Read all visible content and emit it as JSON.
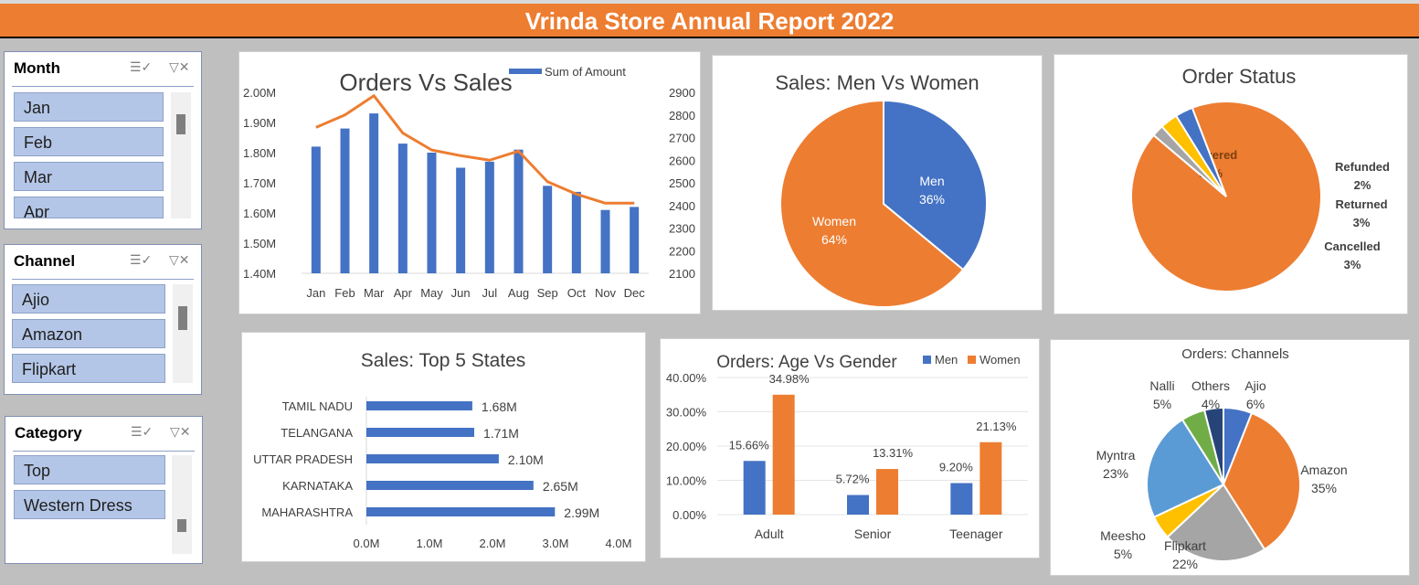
{
  "title": "Vrinda Store Annual Report 2022",
  "slicers": {
    "month": {
      "header": "Month",
      "items": [
        "Jan",
        "Feb",
        "Mar",
        "Apr"
      ]
    },
    "channel": {
      "header": "Channel",
      "items": [
        "Ajio",
        "Amazon",
        "Flipkart"
      ]
    },
    "category": {
      "header": "Category",
      "items": [
        "Top",
        "Western Dress"
      ]
    }
  },
  "icons": {
    "multiselect": "multi-select-icon",
    "clear_filter": "clear-filter-icon"
  },
  "colors": {
    "banner": "#ed7d31",
    "blue": "#4472c4",
    "orange": "#ed7d31",
    "gray": "#a5a5a5",
    "yellow": "#ffc000",
    "lightblue": "#5b9bd5",
    "green": "#70ad47",
    "navy": "#264478",
    "slicer_item": "#b4c6e7"
  },
  "chart_data": [
    {
      "id": "orders_sales",
      "type": "bar",
      "title": "Orders Vs Sales",
      "categories": [
        "Jan",
        "Feb",
        "Mar",
        "Apr",
        "May",
        "Jun",
        "Jul",
        "Aug",
        "Sep",
        "Oct",
        "Nov",
        "Dec"
      ],
      "series": [
        {
          "name": "Sum of Amount",
          "type": "bar",
          "values": [
            1.82,
            1.88,
            1.93,
            1.83,
            1.8,
            1.75,
            1.77,
            1.81,
            1.69,
            1.67,
            1.61,
            1.62
          ]
        },
        {
          "type": "line",
          "values": [
            2745,
            2800,
            2885,
            2720,
            2645,
            2620,
            2600,
            2640,
            2505,
            2450,
            2410,
            2410
          ]
        }
      ],
      "y_left": {
        "ticks": [
          "2.00M",
          "1.90M",
          "1.80M",
          "1.70M",
          "1.60M",
          "1.50M",
          "1.40M"
        ],
        "range": [
          1.4,
          2.0
        ]
      },
      "y_right": {
        "ticks": [
          "2900",
          "2800",
          "2700",
          "2600",
          "2500",
          "2400",
          "2300",
          "2200",
          "2100"
        ],
        "range": [
          2100,
          2900
        ]
      }
    },
    {
      "id": "men_women",
      "type": "pie",
      "title": "Sales: Men Vs Women",
      "slices": [
        {
          "label": "Men",
          "value": 36,
          "pct": "36%"
        },
        {
          "label": "Women",
          "value": 64,
          "pct": "64%"
        }
      ]
    },
    {
      "id": "order_status",
      "type": "pie",
      "title": "Order Status",
      "slices": [
        {
          "label": "Delivered",
          "value": 92,
          "pct": "92%"
        },
        {
          "label": "Refunded",
          "value": 2,
          "pct": "2%"
        },
        {
          "label": "Returned",
          "value": 3,
          "pct": "3%"
        },
        {
          "label": "Cancelled",
          "value": 3,
          "pct": "3%"
        }
      ]
    },
    {
      "id": "top_states",
      "type": "bar",
      "orientation": "horizontal",
      "title": "Sales: Top 5 States",
      "categories": [
        "TAMIL NADU",
        "TELANGANA",
        "UTTAR PRADESH",
        "KARNATAKA",
        "MAHARASHTRA"
      ],
      "values": [
        1.68,
        1.71,
        2.1,
        2.65,
        2.99
      ],
      "labels": [
        "1.68M",
        "1.71M",
        "2.10M",
        "2.65M",
        "2.99M"
      ],
      "x_ticks": [
        "0.0M",
        "1.0M",
        "2.0M",
        "3.0M",
        "4.0M"
      ],
      "xlim": [
        0,
        4
      ]
    },
    {
      "id": "age_gender",
      "type": "bar",
      "title": "Orders: Age Vs Gender",
      "categories": [
        "Adult",
        "Senior",
        "Teenager"
      ],
      "series": [
        {
          "name": "Men",
          "values": [
            15.66,
            5.72,
            9.2
          ],
          "labels": [
            "15.66%",
            "5.72%",
            "9.20%"
          ]
        },
        {
          "name": "Women",
          "values": [
            34.98,
            13.31,
            21.13
          ],
          "labels": [
            "34.98%",
            "13.31%",
            "21.13%"
          ]
        }
      ],
      "y_ticks": [
        "40.00%",
        "30.00%",
        "20.00%",
        "10.00%",
        "0.00%"
      ],
      "ylim": [
        0,
        40
      ]
    },
    {
      "id": "channels",
      "type": "pie",
      "title": "Orders: Channels",
      "slices": [
        {
          "label": "Ajio",
          "value": 6,
          "pct": "6%"
        },
        {
          "label": "Amazon",
          "value": 35,
          "pct": "35%"
        },
        {
          "label": "Flipkart",
          "value": 22,
          "pct": "22%"
        },
        {
          "label": "Meesho",
          "value": 5,
          "pct": "5%"
        },
        {
          "label": "Myntra",
          "value": 23,
          "pct": "23%"
        },
        {
          "label": "Nalli",
          "value": 5,
          "pct": "5%"
        },
        {
          "label": "Others",
          "value": 4,
          "pct": "4%"
        }
      ]
    }
  ]
}
